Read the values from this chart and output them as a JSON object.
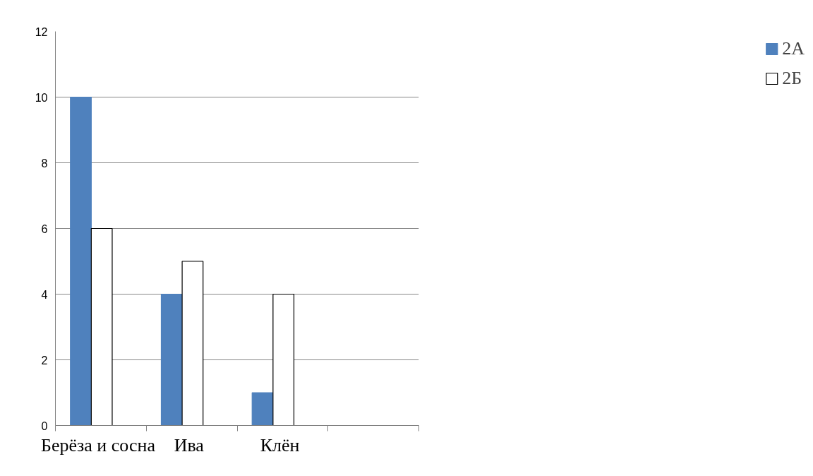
{
  "chart_data": {
    "type": "bar",
    "categories": [
      "Берёза и сосна",
      "Ива",
      "Клён",
      null
    ],
    "series": [
      {
        "name": "2А",
        "color": "#4f81bd",
        "values": [
          10,
          4,
          1,
          null
        ]
      },
      {
        "name": "2Б",
        "color": "#ffffff",
        "values": [
          6,
          5,
          4,
          null
        ]
      }
    ],
    "ylim": [
      0,
      12
    ],
    "yticks": [
      0,
      2,
      4,
      6,
      8,
      10,
      12
    ],
    "grid": "y",
    "legend": "right"
  }
}
